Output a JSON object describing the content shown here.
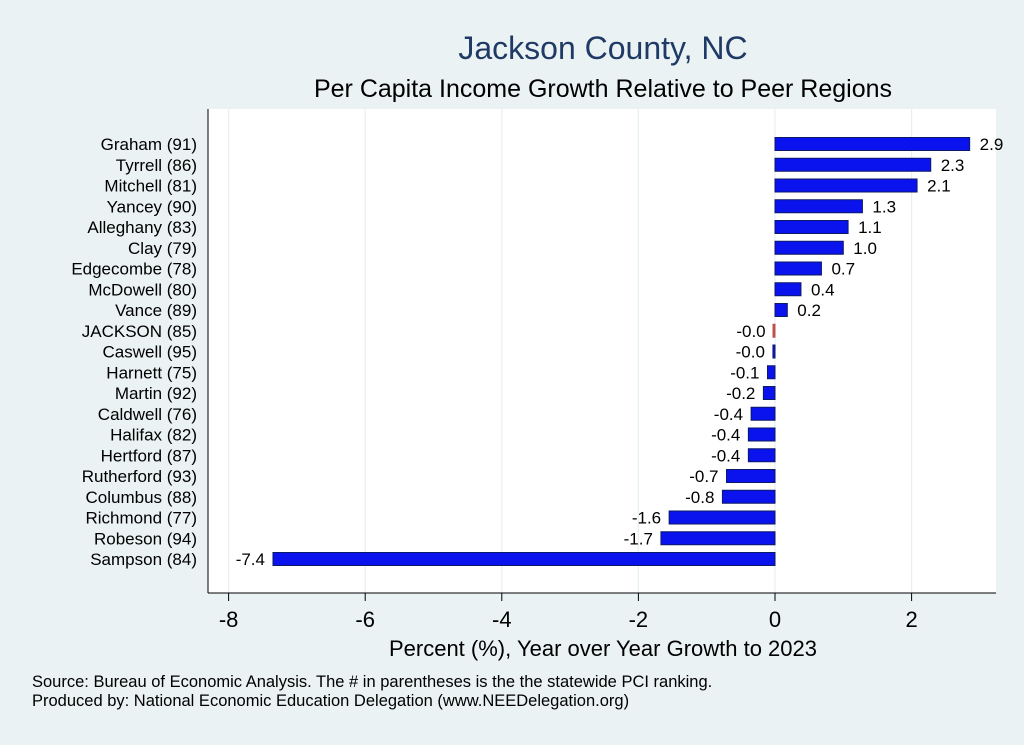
{
  "chart_data": {
    "type": "bar",
    "orientation": "horizontal",
    "title": "Jackson County, NC",
    "subtitle": "Per Capita Income Growth Relative to Peer Regions",
    "xlabel": "Percent (%), Year over Year Growth to 2023",
    "xlim": [
      -8.35,
      3.2
    ],
    "xticks": [
      -8,
      -6,
      -4,
      -2,
      0,
      2
    ],
    "grid": true,
    "categories": [
      "Graham (91)",
      "Tyrrell (86)",
      "Mitchell (81)",
      "Yancey (90)",
      "Alleghany (83)",
      "Clay (79)",
      "Edgecombe (78)",
      "McDowell (80)",
      "Vance (89)",
      "JACKSON (85)",
      "Caswell (95)",
      "Harnett (75)",
      "Martin (92)",
      "Caldwell (76)",
      "Halifax (82)",
      "Hertford (87)",
      "Rutherford (93)",
      "Columbus (88)",
      "Richmond (77)",
      "Robeson (94)",
      "Sampson (84)"
    ],
    "values": [
      2.85,
      2.28,
      2.08,
      1.28,
      1.07,
      1.0,
      0.68,
      0.38,
      0.18,
      -0.02,
      -0.03,
      -0.11,
      -0.17,
      -0.35,
      -0.39,
      -0.39,
      -0.71,
      -0.77,
      -1.55,
      -1.67,
      -7.35
    ],
    "value_labels": [
      "2.9",
      "2.3",
      "2.1",
      "1.3",
      "1.1",
      "1.0",
      "0.7",
      "0.4",
      "0.2",
      "-0.0",
      "-0.0",
      "-0.1",
      "-0.2",
      "-0.4",
      "-0.4",
      "-0.4",
      "-0.7",
      "-0.8",
      "-1.6",
      "-1.7",
      "-7.4"
    ],
    "highlight": "JACKSON (85)",
    "colors": {
      "bar": "#0a12ee",
      "highlight": "#c0504d",
      "bar_edge": "#0b1a66",
      "plot_bg": "#ffffff",
      "grid": "#e8eff0",
      "title": "#1f3a66"
    }
  },
  "notes": {
    "source": "Source: Bureau of Economic Analysis. The # in parentheses is the the statewide PCI ranking.",
    "producer": "Produced by: National Economic Education Delegation (www.NEEDelegation.org)"
  }
}
